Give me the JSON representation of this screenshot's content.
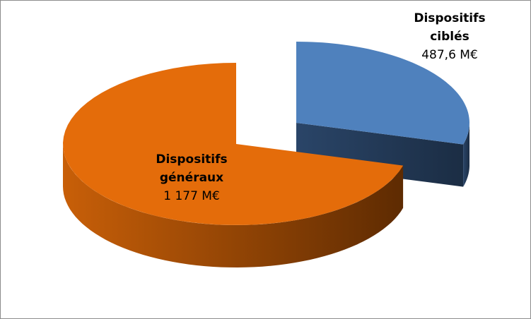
{
  "chart_data": {
    "type": "pie3d",
    "categories": [
      "Dispositifs ciblés",
      "Dispositifs généraux"
    ],
    "values": [
      487.6,
      1177
    ],
    "value_labels": [
      "487,6 M€",
      "1 177 M€"
    ],
    "colors": [
      "#4f81bd",
      "#e46c0a"
    ],
    "exploded": [
      true,
      false
    ]
  }
}
